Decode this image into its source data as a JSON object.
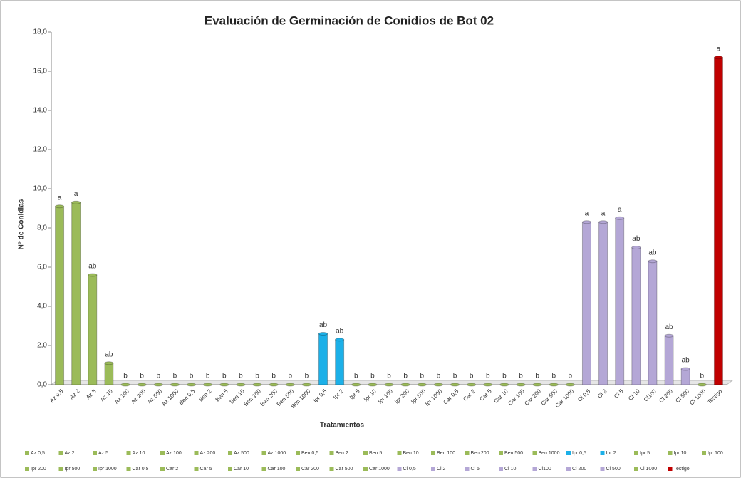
{
  "chart_data": {
    "type": "bar",
    "title": "Evaluación de Germinación de Conidios de Bot 02",
    "x_label": "Tratamientos",
    "y_label": "N° de Conidias",
    "categories": [
      "Az 0,5",
      "Az 2",
      "Az 5",
      "Az 10",
      "Az 100",
      "Az 200",
      "Az 500",
      "Az 1000",
      "Ben 0,5",
      "Ben 2",
      "Ben 5",
      "Ben 10",
      "Ben 100",
      "Ben 200",
      "Ben 500",
      "Ben 1000",
      "Ipr 0,5",
      "Ipr 2",
      "Ipr 5",
      "Ipr 10",
      "Ipr 100",
      "Ipr 200",
      "Ipr 500",
      "Ipr 1000",
      "Car 0,5",
      "Car 2",
      "Car 5",
      "Car 10",
      "Car 100",
      "Car 200",
      "Car 500",
      "Car 1000",
      "Cl 0,5",
      "Cl 2",
      "Cl 5",
      "Cl 10",
      "Cl100",
      "Cl 200",
      "Cl 500",
      "Cl 1000",
      "Testigo"
    ],
    "values": [
      9.1,
      9.3,
      5.6,
      1.1,
      0,
      0,
      0,
      0,
      0,
      0,
      0,
      0,
      0,
      0,
      0,
      0,
      2.6,
      2.3,
      0,
      0,
      0,
      0,
      0,
      0,
      0,
      0,
      0,
      0,
      0,
      0,
      0,
      0,
      8.3,
      8.3,
      8.5,
      7.0,
      6.3,
      2.5,
      0.8,
      0,
      16.7
    ],
    "letters": [
      "a",
      "a",
      "ab",
      "ab",
      "b",
      "b",
      "b",
      "b",
      "b",
      "b",
      "b",
      "b",
      "b",
      "b",
      "b",
      "b",
      "ab",
      "ab",
      "b",
      "b",
      "b",
      "b",
      "b",
      "b",
      "b",
      "b",
      "b",
      "b",
      "b",
      "b",
      "b",
      "b",
      "a",
      "a",
      "a",
      "ab",
      "ab",
      "ab",
      "ab",
      "b",
      "a"
    ],
    "colors": [
      "#9bbb59",
      "#9bbb59",
      "#9bbb59",
      "#9bbb59",
      "#9bbb59",
      "#9bbb59",
      "#9bbb59",
      "#9bbb59",
      "#9bbb59",
      "#9bbb59",
      "#9bbb59",
      "#9bbb59",
      "#9bbb59",
      "#9bbb59",
      "#9bbb59",
      "#9bbb59",
      "#1cb0e8",
      "#1cb0e8",
      "#9bbb59",
      "#9bbb59",
      "#9bbb59",
      "#9bbb59",
      "#9bbb59",
      "#9bbb59",
      "#9bbb59",
      "#9bbb59",
      "#9bbb59",
      "#9bbb59",
      "#9bbb59",
      "#9bbb59",
      "#9bbb59",
      "#9bbb59",
      "#b4a7d6",
      "#b4a7d6",
      "#b4a7d6",
      "#b4a7d6",
      "#b4a7d6",
      "#b4a7d6",
      "#b4a7d6",
      "#9bbb59",
      "#c00000"
    ],
    "ylim": [
      0,
      18
    ],
    "yticks": [
      {
        "value": 0,
        "label": "0,0"
      },
      {
        "value": 2,
        "label": "2,0"
      },
      {
        "value": 4,
        "label": "4,0"
      },
      {
        "value": 6,
        "label": "6,0"
      },
      {
        "value": 8,
        "label": "8,0"
      },
      {
        "value": 10,
        "label": "10,0"
      },
      {
        "value": 12,
        "label": "12,0"
      },
      {
        "value": 14,
        "label": "14,0"
      },
      {
        "value": 16,
        "label": "16,0"
      },
      {
        "value": 18,
        "label": "18,0"
      }
    ],
    "legend": "bottom"
  }
}
